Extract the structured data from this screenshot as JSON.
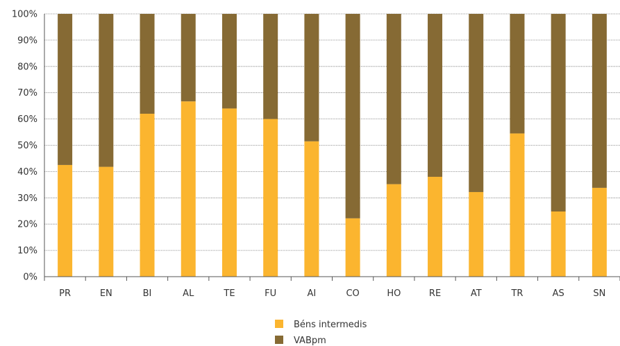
{
  "chart_data": {
    "type": "bar",
    "stacked": true,
    "categories": [
      "PR",
      "EN",
      "BI",
      "AL",
      "TE",
      "FU",
      "AI",
      "CO",
      "HO",
      "RE",
      "AT",
      "TR",
      "AS",
      "SN"
    ],
    "series": [
      {
        "name": "Béns intermedis",
        "color": "#FBB52F",
        "values": [
          42.5,
          41.8,
          62.0,
          66.7,
          64.0,
          60.0,
          51.5,
          22.2,
          35.2,
          38.0,
          32.2,
          54.5,
          24.8,
          33.8
        ]
      },
      {
        "name": "VABpm",
        "color": "#866A34",
        "values": [
          57.5,
          58.2,
          38.0,
          33.3,
          36.0,
          40.0,
          48.5,
          77.8,
          64.8,
          62.0,
          67.8,
          45.5,
          75.2,
          66.2
        ]
      }
    ],
    "y_ticks": [
      "0%",
      "10%",
      "20%",
      "30%",
      "40%",
      "50%",
      "60%",
      "70%",
      "80%",
      "90%",
      "100%"
    ],
    "ylim": [
      0,
      100
    ],
    "grid": true,
    "legend_position": "bottom-center"
  }
}
